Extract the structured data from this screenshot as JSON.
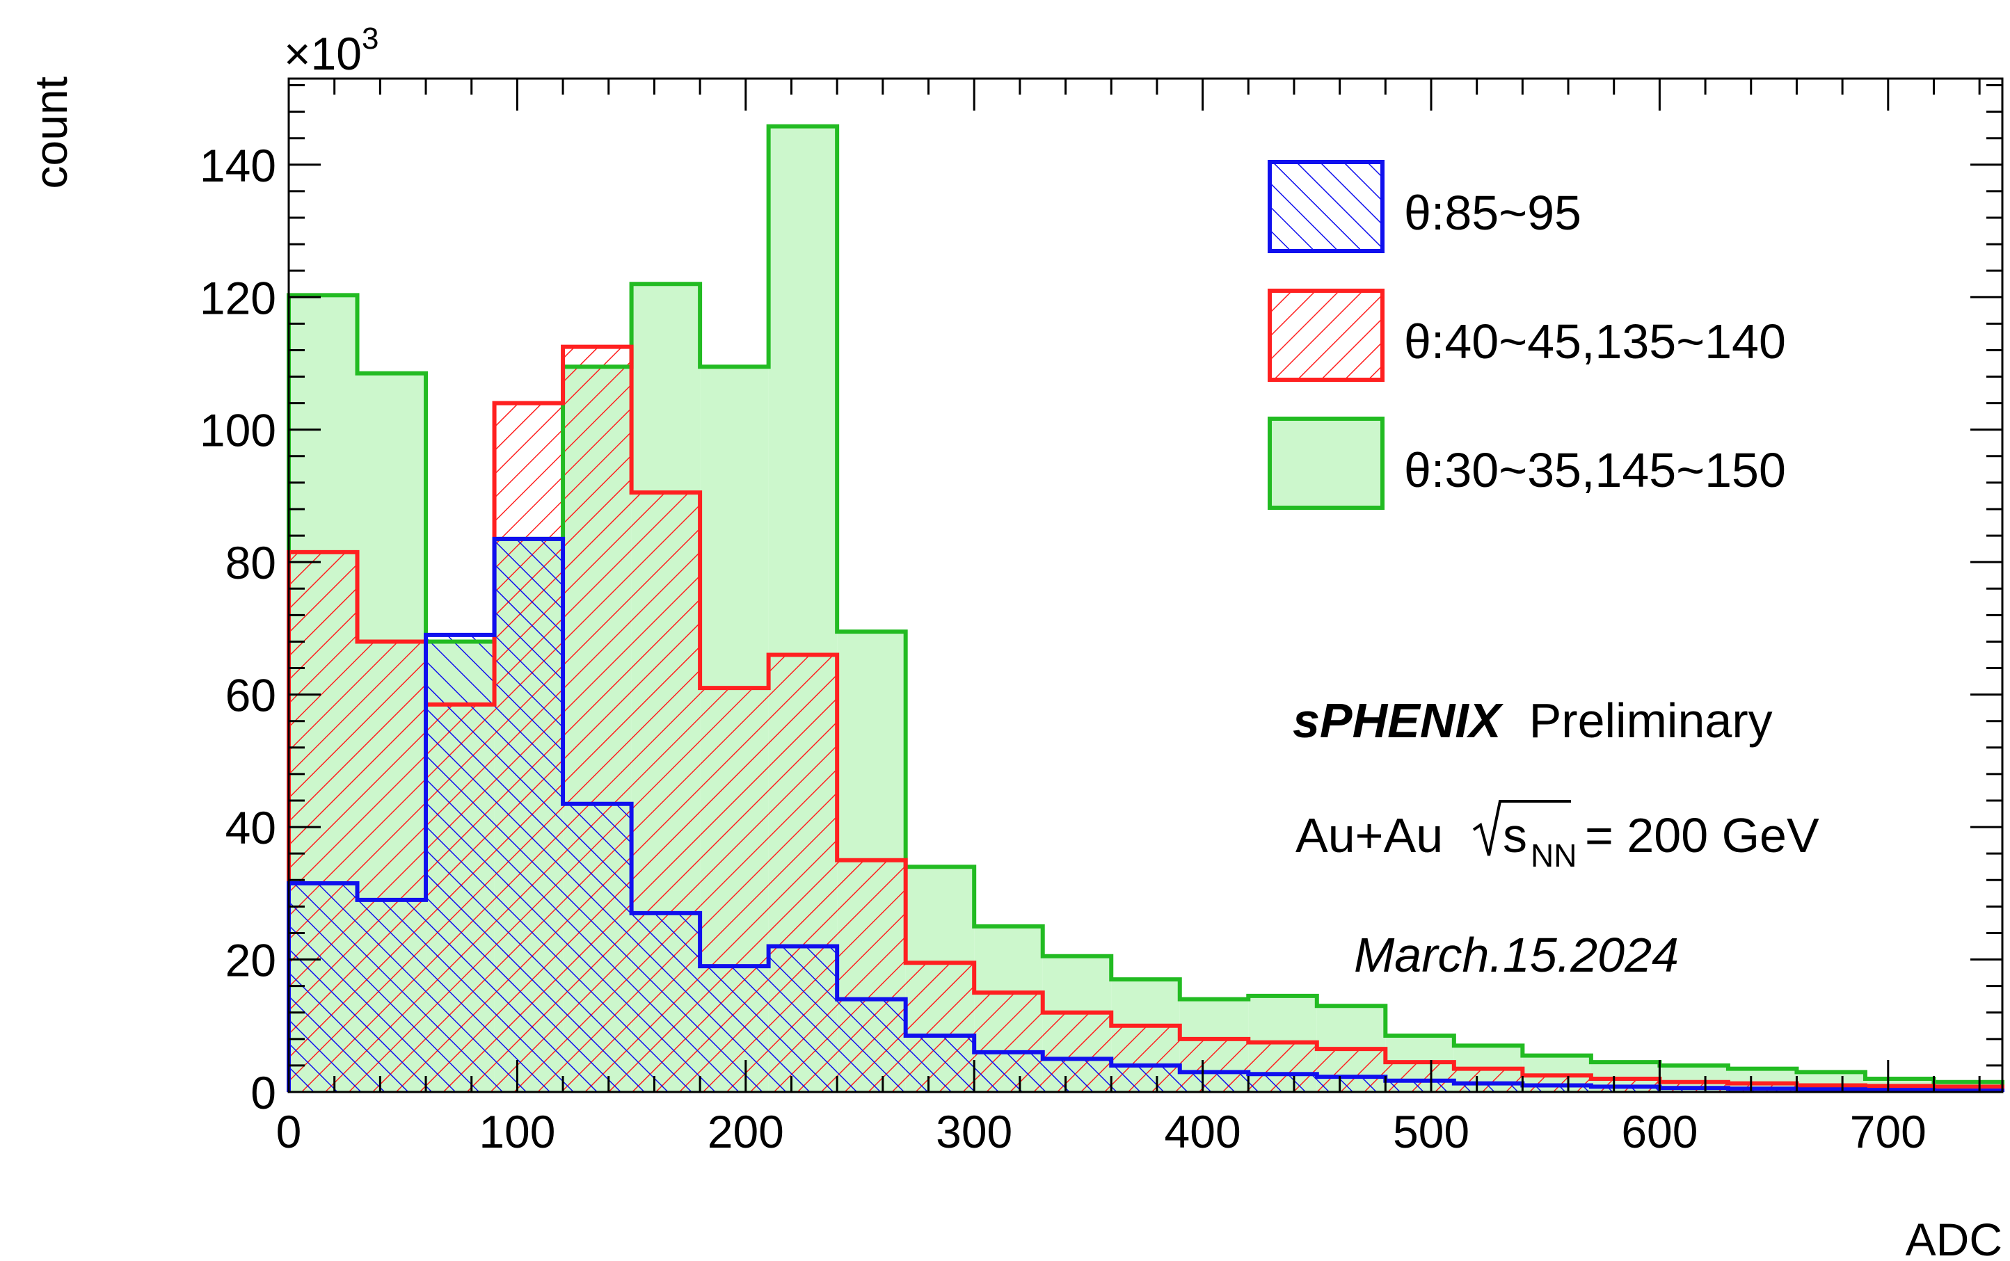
{
  "chart_data": {
    "type": "bar",
    "title": "",
    "xlabel": "ADC",
    "ylabel": "count",
    "y_multiplier_label": "×10",
    "y_multiplier_exp": "3",
    "xlim": [
      0,
      750
    ],
    "ylim": [
      0,
      153
    ],
    "x_ticks": [
      "0",
      "100",
      "200",
      "300",
      "400",
      "500",
      "600",
      "700"
    ],
    "y_ticks": [
      "0",
      "20",
      "40",
      "60",
      "80",
      "100",
      "120",
      "140"
    ],
    "bin_edges": [
      0,
      30,
      60,
      90,
      120,
      150,
      180,
      210,
      240,
      270,
      300,
      330,
      360,
      390,
      420,
      450,
      480,
      510,
      540,
      570,
      600,
      630,
      660,
      690,
      720,
      750
    ],
    "series": [
      {
        "name": "θ:30~35,145~150",
        "color": "#22bb22",
        "fill": "#ccf7cc",
        "style": "solid",
        "values": [
          120.3,
          108.5,
          68.0,
          83.5,
          109.5,
          122.0,
          109.5,
          145.8,
          69.5,
          34.0,
          25.0,
          20.5,
          17.0,
          14.0,
          14.5,
          13.0,
          8.5,
          7.0,
          5.5,
          4.5,
          4.0,
          3.5,
          3.0,
          2.0,
          1.5
        ]
      },
      {
        "name": "θ:40~45,135~140",
        "color": "#ff2020",
        "fill": "#ff2020",
        "style": "hatch-down",
        "values": [
          81.5,
          68.0,
          58.5,
          104.0,
          112.5,
          90.5,
          61.0,
          66.0,
          35.0,
          19.5,
          15.0,
          12.0,
          10.0,
          8.0,
          7.5,
          6.5,
          4.5,
          3.5,
          2.5,
          2.0,
          1.5,
          1.3,
          1.0,
          0.9,
          0.8
        ]
      },
      {
        "name": "θ:85~95",
        "color": "#1010ee",
        "fill": "#1010ee",
        "style": "hatch-up",
        "values": [
          31.5,
          29.0,
          69.0,
          83.5,
          43.5,
          27.0,
          19.0,
          22.0,
          14.0,
          8.5,
          6.0,
          5.0,
          4.0,
          3.0,
          2.7,
          2.3,
          1.7,
          1.3,
          1.0,
          0.8,
          0.6,
          0.5,
          0.4,
          0.3,
          0.2
        ]
      }
    ],
    "legend_position": "top-right",
    "annotations": {
      "experiment": "sPHENIX",
      "status": "Preliminary",
      "system": "Au+Au",
      "sqrt_s_label": "s",
      "sqrt_s_sub": "NN",
      "energy": "= 200 GeV",
      "date": "March.15.2024"
    }
  }
}
